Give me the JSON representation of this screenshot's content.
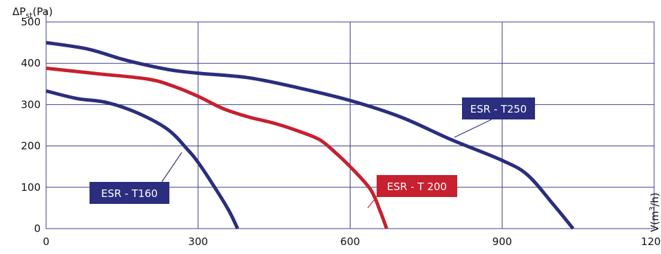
{
  "chart_data": {
    "type": "line",
    "ylabel": {
      "main": "ΔP",
      "sub": "st",
      "unit": "(Pa)"
    },
    "xlabel": {
      "main": "V(m",
      "sup": "3",
      "end": "/h)"
    },
    "xlim": [
      0,
      1200
    ],
    "ylim": [
      0,
      500
    ],
    "xticks": [
      "0",
      "300",
      "600",
      "900",
      "1200"
    ],
    "yticks": [
      "0",
      "100",
      "200",
      "300",
      "400",
      "500"
    ],
    "grid": true,
    "colors": {
      "blue": "#2b2d7e",
      "red": "#c7202f",
      "grid": "#3d3f86"
    },
    "series": [
      {
        "name": "ESR - T160",
        "color": "#2b2d7e",
        "x": [
          0,
          60,
          120,
          180,
          240,
          280,
          300,
          330,
          360,
          378
        ],
        "y": [
          333,
          315,
          305,
          280,
          240,
          190,
          160,
          105,
          45,
          0
        ]
      },
      {
        "name": "ESR - T 200",
        "color": "#c7202f",
        "x": [
          0,
          100,
          200,
          250,
          300,
          350,
          400,
          450,
          500,
          540,
          570,
          600,
          640,
          660,
          672
        ],
        "y": [
          388,
          375,
          362,
          345,
          320,
          290,
          270,
          255,
          235,
          215,
          185,
          150,
          95,
          40,
          0
        ]
      },
      {
        "name": "ESR - T250",
        "color": "#2b2d7e",
        "x": [
          0,
          80,
          150,
          200,
          250,
          300,
          400,
          500,
          600,
          700,
          800,
          900,
          950,
          1000,
          1040
        ],
        "y": [
          450,
          435,
          410,
          395,
          383,
          376,
          365,
          340,
          310,
          270,
          215,
          165,
          130,
          60,
          0
        ]
      }
    ],
    "callouts": [
      {
        "series": 0,
        "label": "ESR - T160",
        "color": "#2b2d7e"
      },
      {
        "series": 1,
        "label": "ESR - T 200",
        "color": "#c7202f"
      },
      {
        "series": 2,
        "label": "ESR - T250",
        "color": "#2b2d7e"
      }
    ]
  }
}
